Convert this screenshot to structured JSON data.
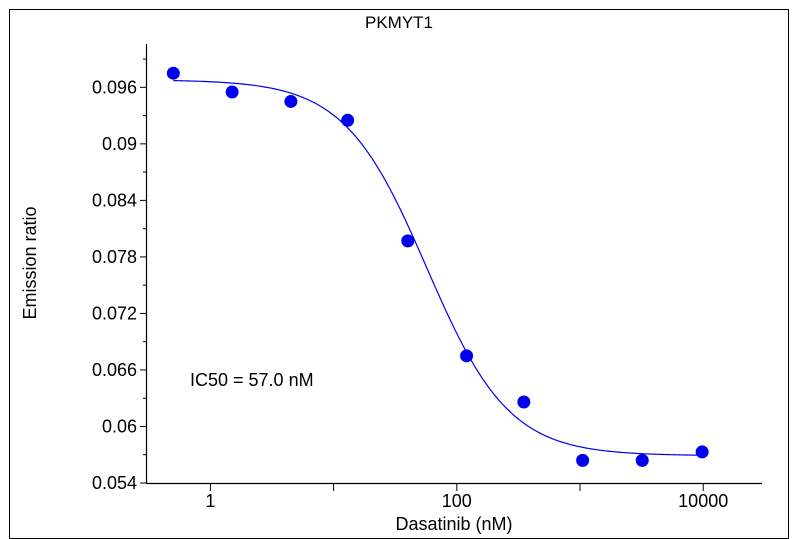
{
  "chart_data": {
    "type": "scatter",
    "title": "PKMYT1",
    "xlabel": "Dasatinib (nM)",
    "ylabel": "Emission ratio",
    "x_scale": "log",
    "xlim": [
      0.3,
      30000
    ],
    "ylim": [
      0.054,
      0.1006
    ],
    "x_ticks": [
      {
        "value": 1,
        "label": "1"
      },
      {
        "value": 100,
        "label": "100"
      },
      {
        "value": 10000,
        "label": "10000"
      }
    ],
    "y_ticks": [
      {
        "value": 0.054,
        "label": "0.054"
      },
      {
        "value": 0.06,
        "label": "0.06"
      },
      {
        "value": 0.066,
        "label": "0.066"
      },
      {
        "value": 0.072,
        "label": "0.072"
      },
      {
        "value": 0.078,
        "label": "0.078"
      },
      {
        "value": 0.084,
        "label": "0.084"
      },
      {
        "value": 0.09,
        "label": "0.09"
      },
      {
        "value": 0.096,
        "label": "0.096"
      }
    ],
    "series": [
      {
        "type": "scatter",
        "color": "#0000ee",
        "points": [
          {
            "x": 0.5,
            "y": 0.0975
          },
          {
            "x": 1.5,
            "y": 0.0955
          },
          {
            "x": 4.5,
            "y": 0.0945
          },
          {
            "x": 13,
            "y": 0.0925
          },
          {
            "x": 40,
            "y": 0.0797
          },
          {
            "x": 120,
            "y": 0.0675
          },
          {
            "x": 350,
            "y": 0.0626
          },
          {
            "x": 1050,
            "y": 0.0564
          },
          {
            "x": 3200,
            "y": 0.0564
          },
          {
            "x": 9800,
            "y": 0.0573
          }
        ]
      },
      {
        "type": "curve",
        "color": "#0000ee",
        "top": 0.0968,
        "bottom": 0.0569,
        "ec50": 57.0,
        "hill": 1.3
      }
    ],
    "annotation": "IC50 = 57.0 nM",
    "grid": false
  }
}
